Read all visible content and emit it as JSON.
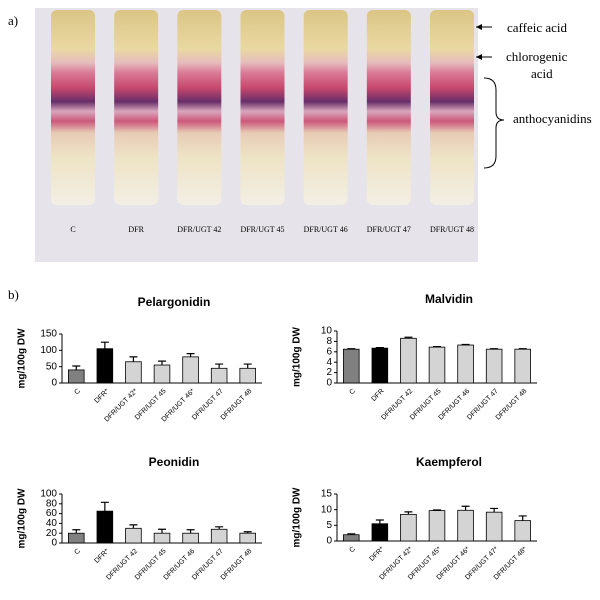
{
  "panel_a": {
    "label": "a)",
    "lanes": [
      "C",
      "DFR",
      "DFR/UGT 42",
      "DFR/UGT 45",
      "DFR/UGT 46",
      "DFR/UGT 47",
      "DFR/UGT 48"
    ],
    "annotations": [
      "caffeic acid",
      "chlorogenic",
      "acid",
      "anthocyanidins"
    ]
  },
  "panel_b": {
    "label": "b)"
  },
  "chart_data": [
    {
      "type": "bar",
      "title": "Pelargonidin",
      "y_label": "mg/100g DW",
      "categories": [
        "C",
        "DFR*",
        "DFR/UGT 42*",
        "DFR/UGT 45",
        "DFR/UGT 46*",
        "DFR/UGT 47",
        "DFR/UGT 48"
      ],
      "values": [
        40,
        105,
        65,
        55,
        80,
        45,
        45
      ],
      "errors": [
        12,
        20,
        15,
        12,
        10,
        13,
        13
      ],
      "colors": [
        "#808080",
        "#000000",
        "#d4d4d4",
        "#d4d4d4",
        "#d4d4d4",
        "#d4d4d4",
        "#d4d4d4"
      ],
      "ylim": [
        0,
        150
      ],
      "yticks": [
        0,
        50,
        100,
        150
      ]
    },
    {
      "type": "bar",
      "title": "Malvidin",
      "y_label": "mg/100g DW",
      "categories": [
        "C",
        "DFR",
        "DFR/UGT 42",
        "DFR/UGT 45",
        "DFR/UGT 46",
        "DFR/UGT 47",
        "DFR/UGT 48"
      ],
      "values": [
        6.5,
        6.7,
        8.6,
        6.9,
        7.3,
        6.5,
        6.5
      ],
      "errors": [
        0.1,
        0.1,
        0.2,
        0.1,
        0.1,
        0.1,
        0.1
      ],
      "colors": [
        "#808080",
        "#000000",
        "#d4d4d4",
        "#d4d4d4",
        "#d4d4d4",
        "#d4d4d4",
        "#d4d4d4"
      ],
      "ylim": [
        0,
        10
      ],
      "yticks": [
        0,
        2,
        4,
        6,
        8,
        10
      ]
    },
    {
      "type": "bar",
      "title": "Peonidin",
      "y_label": "mg/100g DW",
      "categories": [
        "C",
        "DFR*",
        "DFR/UGT 42",
        "DFR/UGT 45",
        "DFR/UGT 46",
        "DFR/UGT 47",
        "DFR/UGT 48"
      ],
      "values": [
        20,
        65,
        30,
        20,
        20,
        28,
        20
      ],
      "errors": [
        7,
        18,
        7,
        8,
        7,
        5,
        3
      ],
      "colors": [
        "#808080",
        "#000000",
        "#d4d4d4",
        "#d4d4d4",
        "#d4d4d4",
        "#d4d4d4",
        "#d4d4d4"
      ],
      "ylim": [
        0,
        100
      ],
      "yticks": [
        0,
        20,
        40,
        60,
        80,
        100
      ]
    },
    {
      "type": "bar",
      "title": "Kaempferol",
      "y_label": "mg/100g DW",
      "categories": [
        "C",
        "DFR*",
        "DFR/UGT 42*",
        "DFR/UGT 45*",
        "DFR/UGT 46*",
        "DFR/UGT 47*",
        "DFR/UGT 48*"
      ],
      "values": [
        2,
        5.5,
        8.5,
        9.7,
        9.8,
        9.2,
        6.5
      ],
      "errors": [
        0.3,
        1.2,
        0.8,
        0.2,
        1.3,
        1.2,
        1.5
      ],
      "colors": [
        "#808080",
        "#000000",
        "#d4d4d4",
        "#d4d4d4",
        "#d4d4d4",
        "#d4d4d4",
        "#d4d4d4"
      ],
      "ylim": [
        0,
        15
      ],
      "yticks": [
        0,
        5,
        10,
        15
      ]
    }
  ]
}
